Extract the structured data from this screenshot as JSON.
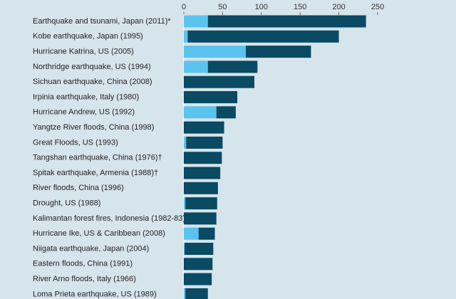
{
  "chart_data": {
    "type": "bar",
    "orientation": "horizontal",
    "stacked": true,
    "categories": [
      "Earthquake and tsunami, Japan (2011)*",
      "Kobe earthquake, Japan (1995)",
      "Hurricane Katrina, US (2005)",
      "Northridge earthquake, US (1994)",
      "Sichuan earthquake, China (2008)",
      "Irpinia earthquake, Italy (1980)",
      "Hurricane Andrew, US (1992)",
      "Yangtze River floods, China (1998)",
      "Great Floods, US (1993)",
      "Tangshan earthquake, China (1976)†",
      "Spitak earthquake, Armenia (1988)†",
      "River floods, China (1996)",
      "Drought, US (1988)",
      "Kalimantan forest fires, Indonesia (1982-83)†",
      "Hurricane Ike, US & Caribbean (2008)",
      "Niigata earthquake, Japan (2004)",
      "Eastern floods, China (1991)",
      "River Arno floods, Italy (1966)",
      "Loma Prieta earthquake, US (1989)"
    ],
    "series": [
      {
        "color": "#5bc4ee",
        "values": [
          31,
          5,
          80,
          31,
          0,
          0,
          42,
          0,
          3,
          0,
          0,
          0,
          2,
          0,
          19,
          1,
          0,
          0,
          2
        ]
      },
      {
        "color": "#0a4a63",
        "values": [
          204,
          195,
          84,
          64,
          91,
          69,
          25,
          52,
          47,
          49,
          47,
          44,
          41,
          42,
          21,
          37,
          37,
          36,
          29
        ]
      }
    ],
    "xlim": [
      0,
      250
    ],
    "xticks": [
      0,
      50,
      100,
      150,
      200,
      250
    ]
  }
}
